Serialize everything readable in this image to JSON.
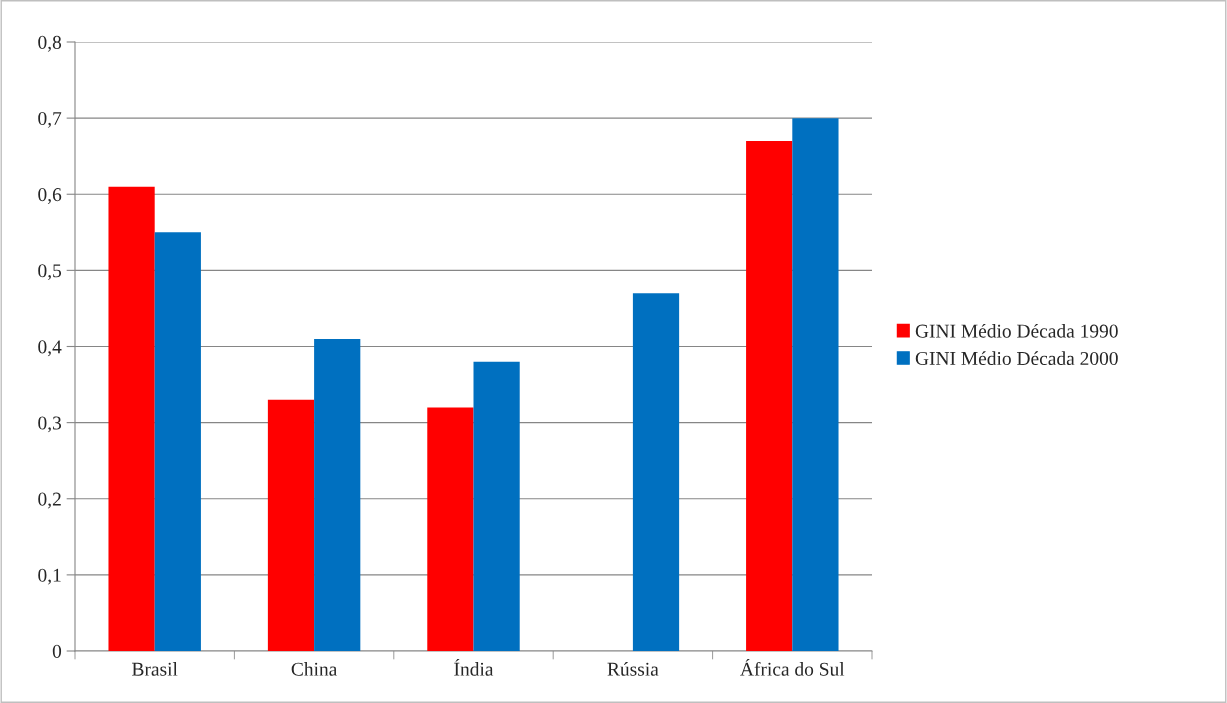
{
  "chart_data": {
    "type": "bar",
    "categories": [
      "Brasil",
      "China",
      "Índia",
      "Rússia",
      "África do Sul"
    ],
    "series": [
      {
        "name": "GINI Médio Década 1990",
        "color": "#ff0000",
        "values": [
          0.61,
          0.33,
          0.32,
          null,
          0.67
        ]
      },
      {
        "name": "GINI Médio Década 2000",
        "color": "#0070c0",
        "values": [
          0.55,
          0.41,
          0.38,
          0.47,
          0.7
        ]
      }
    ],
    "ylim": [
      0,
      0.8
    ],
    "yticks": [
      {
        "value": 0,
        "label": "0"
      },
      {
        "value": 0.1,
        "label": "0,1"
      },
      {
        "value": 0.2,
        "label": "0,2"
      },
      {
        "value": 0.3,
        "label": "0,3"
      },
      {
        "value": 0.4,
        "label": "0,4"
      },
      {
        "value": 0.5,
        "label": "0,5"
      },
      {
        "value": 0.6,
        "label": "0,6"
      },
      {
        "value": 0.7,
        "label": "0,7"
      },
      {
        "value": 0.8,
        "label": "0,8"
      }
    ],
    "grid": "y",
    "legend": "right"
  }
}
